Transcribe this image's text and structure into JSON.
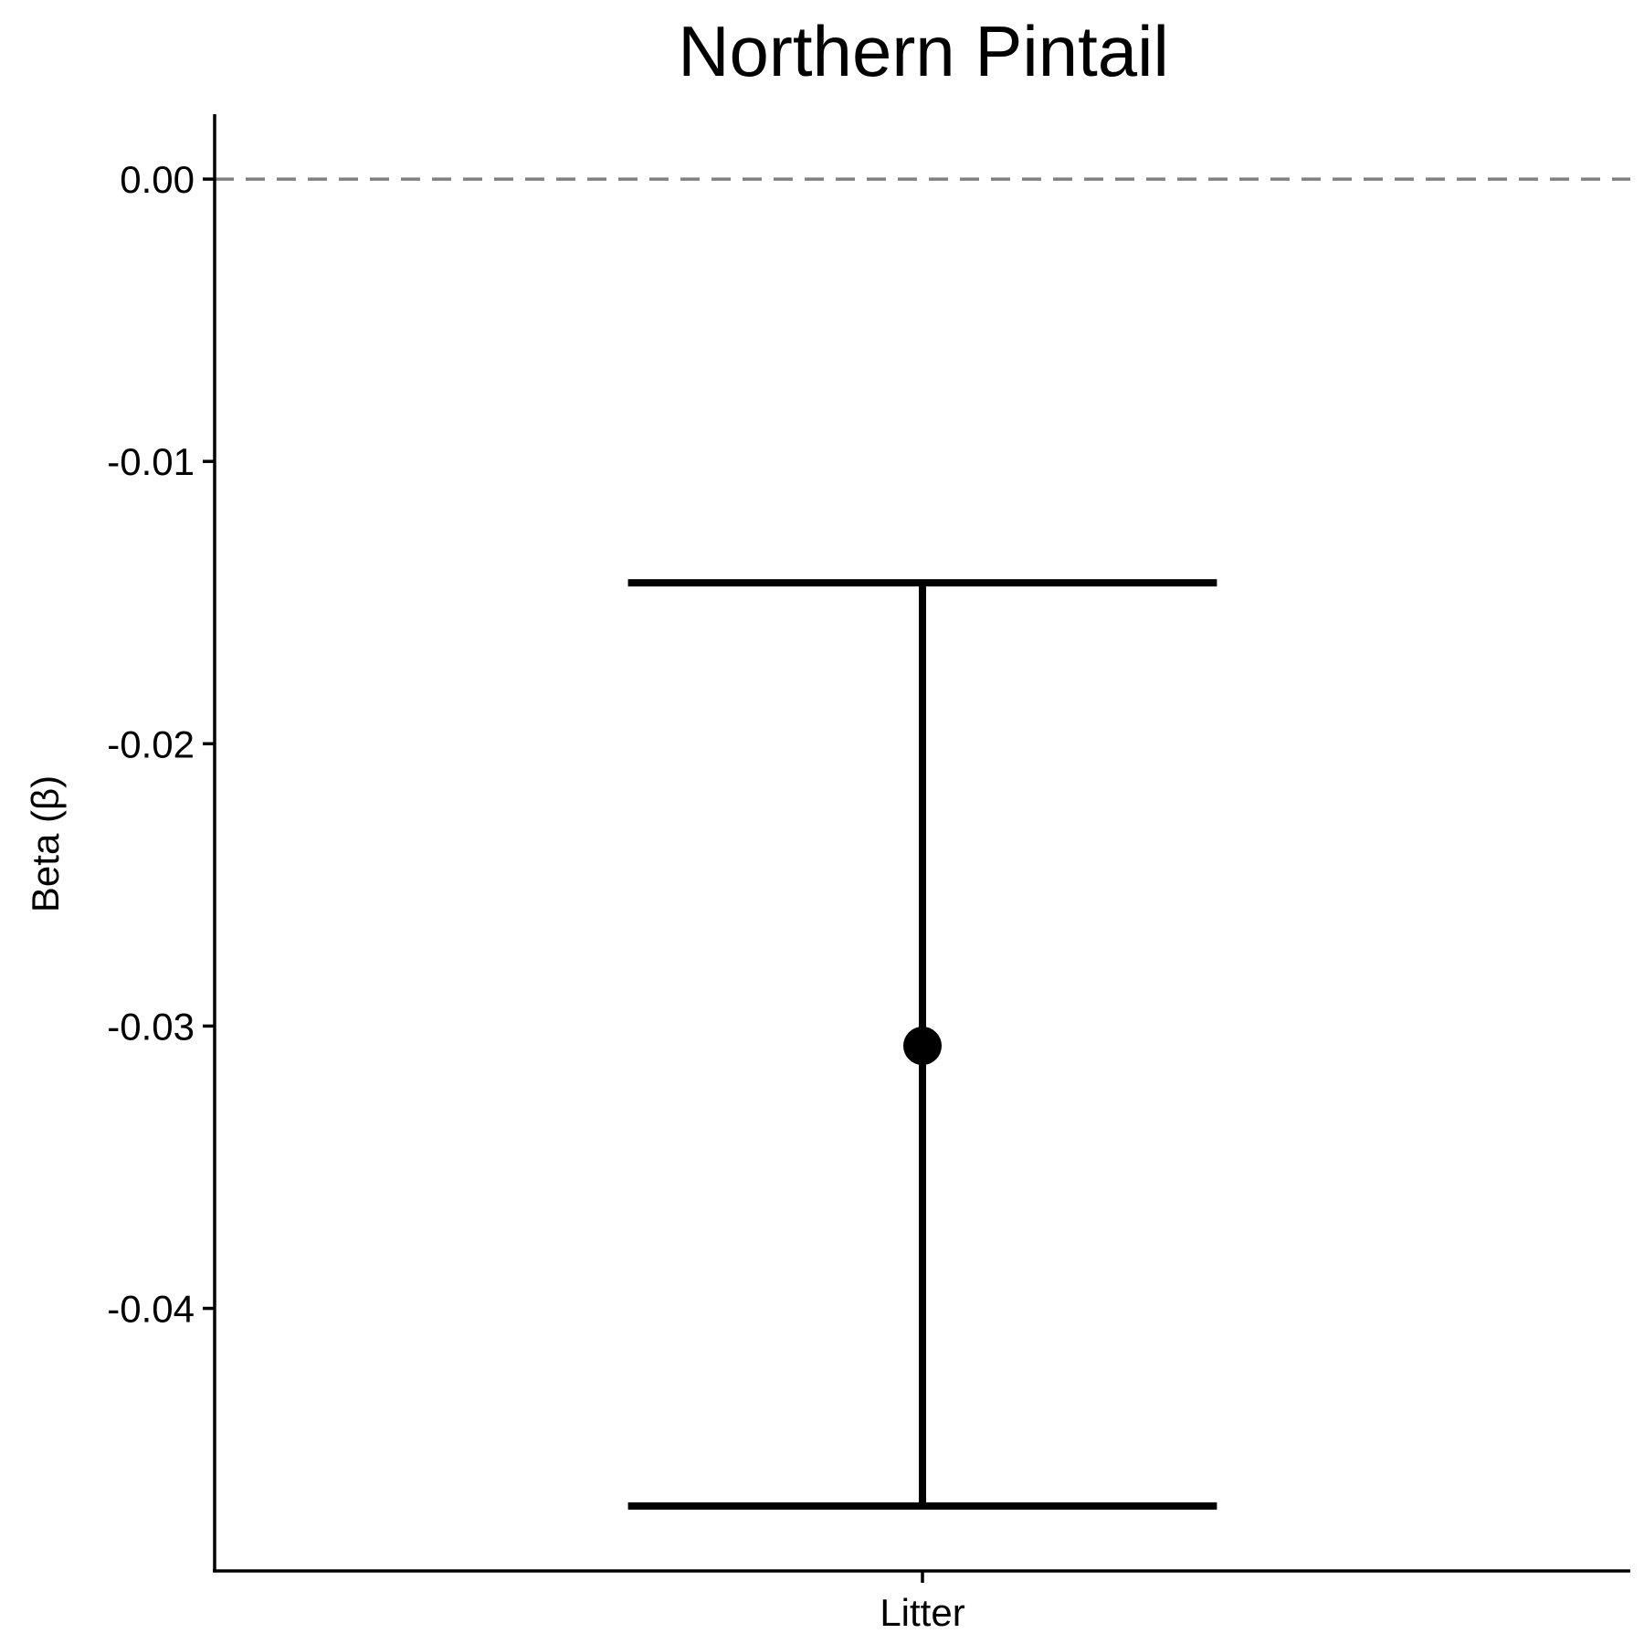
{
  "chart_data": {
    "type": "errorbar",
    "title": "Northern Pintail",
    "xlabel": "",
    "ylabel": "Beta (β)",
    "categories": [
      "Litter"
    ],
    "points": [
      {
        "category": "Litter",
        "estimate": -0.0307,
        "lower": -0.047,
        "upper": -0.0143
      }
    ],
    "yticks": [
      0.0,
      -0.01,
      -0.02,
      -0.03,
      -0.04
    ],
    "ytick_labels": [
      "0.00",
      "-0.01",
      "-0.02",
      "-0.03",
      "-0.04"
    ],
    "ylim": [
      -0.0493,
      0.0023
    ],
    "reference_line": {
      "y": 0,
      "style": "dashed",
      "color": "#808080"
    },
    "grid": false,
    "legend": "none",
    "colors": {
      "marks": "#000000",
      "axis": "#000000"
    }
  }
}
